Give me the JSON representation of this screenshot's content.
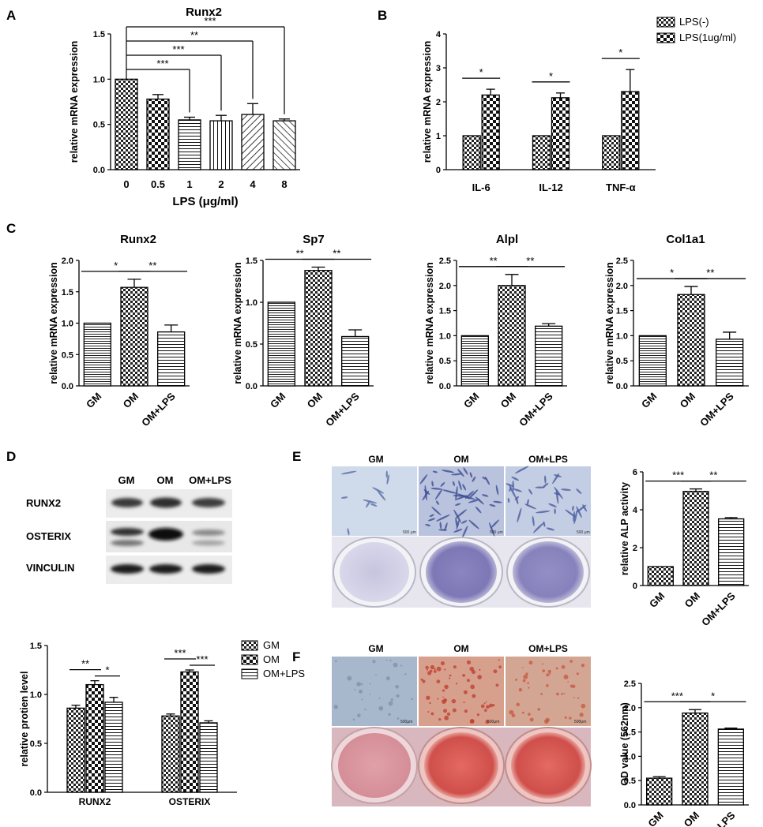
{
  "panel_letters": [
    "A",
    "B",
    "C",
    "D",
    "E",
    "F"
  ],
  "colors": {
    "ink": "#000000",
    "blot_bg": "#e6e6e6",
    "alp_well": "#9a97c8",
    "ars_well": "#d96060"
  },
  "chart_data": [
    {
      "id": "A",
      "type": "bar",
      "title": "Runx2",
      "xlabel": "LPS (μg/ml)",
      "ylabel": "relative mRNA expression",
      "categories": [
        "0",
        "0.5",
        "1",
        "2",
        "4",
        "8"
      ],
      "values": [
        1.0,
        0.78,
        0.55,
        0.54,
        0.61,
        0.54
      ],
      "errors": [
        0,
        0.05,
        0.03,
        0.06,
        0.12,
        0.02
      ],
      "patterns": [
        "checker",
        "checker-lg",
        "hlines",
        "vlines",
        "diag",
        "diag-rev"
      ],
      "ylim": [
        0,
        1.5
      ],
      "yticks": [
        "0.0",
        "0.5",
        "1.0",
        "1.5"
      ],
      "significance": [
        {
          "from": 0,
          "to": 2,
          "label": "***"
        },
        {
          "from": 0,
          "to": 3,
          "label": "***"
        },
        {
          "from": 0,
          "to": 4,
          "label": "**"
        },
        {
          "from": 0,
          "to": 5,
          "label": "***"
        }
      ]
    },
    {
      "id": "B",
      "type": "bar",
      "title": "",
      "xlabel": "",
      "ylabel": "relative mRNA expression",
      "categories": [
        "IL-6",
        "IL-12",
        "TNF-α"
      ],
      "series": [
        {
          "name": "LPS(-)",
          "values": [
            1.0,
            1.0,
            1.0
          ],
          "errors": [
            0,
            0,
            0
          ],
          "pattern": "checker"
        },
        {
          "name": "LPS(1ug/ml)",
          "values": [
            2.2,
            2.12,
            2.3
          ],
          "errors": [
            0.17,
            0.14,
            0.65
          ],
          "pattern": "checker-lg"
        }
      ],
      "ylim": [
        0,
        4
      ],
      "yticks": [
        "0",
        "1",
        "2",
        "3",
        "4"
      ],
      "significance": [
        {
          "category": 0,
          "label": "*"
        },
        {
          "category": 1,
          "label": "*"
        },
        {
          "category": 2,
          "label": "*"
        }
      ],
      "legend": "top-right"
    },
    {
      "id": "C1",
      "type": "bar",
      "title": "Runx2",
      "ylabel": "relative mRNA expression",
      "categories": [
        "GM",
        "OM",
        "OM+LPS"
      ],
      "values": [
        1.0,
        1.57,
        0.86
      ],
      "errors": [
        0,
        0.13,
        0.11
      ],
      "patterns": [
        "hlines-dense",
        "checker",
        "hlines"
      ],
      "ylim": [
        0,
        2.0
      ],
      "yticks": [
        "0.0",
        "0.5",
        "1.0",
        "1.5",
        "2.0"
      ],
      "significance": [
        {
          "from": 0,
          "to": 1,
          "label": "*"
        },
        {
          "from": 1,
          "to": 2,
          "label": "**"
        }
      ]
    },
    {
      "id": "C2",
      "type": "bar",
      "title": "Sp7",
      "ylabel": "relative mRNA expression",
      "categories": [
        "GM",
        "OM",
        "OM+LPS"
      ],
      "values": [
        1.0,
        1.38,
        0.59
      ],
      "errors": [
        0,
        0.04,
        0.08
      ],
      "patterns": [
        "hlines-dense",
        "checker",
        "hlines"
      ],
      "ylim": [
        0,
        1.5
      ],
      "yticks": [
        "0.0",
        "0.5",
        "1.0",
        "1.5"
      ],
      "significance": [
        {
          "from": 0,
          "to": 1,
          "label": "**"
        },
        {
          "from": 1,
          "to": 2,
          "label": "**"
        }
      ]
    },
    {
      "id": "C3",
      "type": "bar",
      "title": "Alpl",
      "ylabel": "relative mRNA expression",
      "categories": [
        "GM",
        "OM",
        "OM+LPS"
      ],
      "values": [
        1.0,
        2.0,
        1.19
      ],
      "errors": [
        0,
        0.22,
        0.05
      ],
      "patterns": [
        "hlines-dense",
        "checker",
        "hlines"
      ],
      "ylim": [
        0,
        2.5
      ],
      "yticks": [
        "0.0",
        "0.5",
        "1.0",
        "1.5",
        "2.0",
        "2.5"
      ],
      "significance": [
        {
          "from": 0,
          "to": 1,
          "label": "**"
        },
        {
          "from": 1,
          "to": 2,
          "label": "**"
        }
      ]
    },
    {
      "id": "C4",
      "type": "bar",
      "title": "Col1a1",
      "ylabel": "relative mRNA expression",
      "categories": [
        "GM",
        "OM",
        "OM+LPS"
      ],
      "values": [
        1.0,
        1.82,
        0.93
      ],
      "errors": [
        0,
        0.16,
        0.14
      ],
      "patterns": [
        "hlines-dense",
        "checker",
        "hlines"
      ],
      "ylim": [
        0,
        2.5
      ],
      "yticks": [
        "0.0",
        "0.5",
        "1.0",
        "1.5",
        "2.0",
        "2.5"
      ],
      "significance": [
        {
          "from": 0,
          "to": 1,
          "label": "*"
        },
        {
          "from": 1,
          "to": 2,
          "label": "**"
        }
      ]
    },
    {
      "id": "D",
      "type": "bar",
      "title": "",
      "ylabel": "relative protien level",
      "categories": [
        "RUNX2",
        "OSTERIX"
      ],
      "series": [
        {
          "name": "GM",
          "values": [
            0.86,
            0.78
          ],
          "errors": [
            0.03,
            0.02
          ],
          "pattern": "checker"
        },
        {
          "name": "OM",
          "values": [
            1.1,
            1.23
          ],
          "errors": [
            0.04,
            0.02
          ],
          "pattern": "checker-lg"
        },
        {
          "name": "OM+LPS",
          "values": [
            0.92,
            0.71
          ],
          "errors": [
            0.05,
            0.02
          ],
          "pattern": "hlines"
        }
      ],
      "ylim": [
        0,
        1.5
      ],
      "yticks": [
        "0.0",
        "0.5",
        "1.0",
        "1.5"
      ],
      "significance": [
        {
          "category": 0,
          "from": 0,
          "to": 1,
          "label": "**"
        },
        {
          "category": 0,
          "from": 1,
          "to": 2,
          "label": "*"
        },
        {
          "category": 1,
          "from": 0,
          "to": 1,
          "label": "***"
        },
        {
          "category": 1,
          "from": 1,
          "to": 2,
          "label": "***"
        }
      ],
      "legend": "top-right"
    },
    {
      "id": "E",
      "type": "bar",
      "title": "",
      "ylabel": "relative ALP activity",
      "categories": [
        "GM",
        "OM",
        "OM+LPS"
      ],
      "values": [
        1.0,
        4.97,
        3.52
      ],
      "errors": [
        0,
        0.13,
        0.07
      ],
      "patterns": [
        "checker",
        "checker",
        "hlines"
      ],
      "ylim": [
        0,
        6
      ],
      "yticks": [
        "0",
        "2",
        "4",
        "6"
      ],
      "significance": [
        {
          "from": 0,
          "to": 1,
          "label": "***"
        },
        {
          "from": 1,
          "to": 2,
          "label": "**"
        }
      ]
    },
    {
      "id": "F",
      "type": "bar",
      "title": "",
      "ylabel": "OD value (562nm)",
      "categories": [
        "GM",
        "OM",
        "OM+LPS"
      ],
      "values": [
        0.55,
        1.89,
        1.56
      ],
      "errors": [
        0.03,
        0.07,
        0.02
      ],
      "patterns": [
        "checker",
        "checker",
        "hlines"
      ],
      "ylim": [
        0,
        2.5
      ],
      "yticks": [
        "0.0",
        "0.5",
        "1.0",
        "1.5",
        "2.0",
        "2.5"
      ],
      "significance": [
        {
          "from": 0,
          "to": 1,
          "label": "***"
        },
        {
          "from": 1,
          "to": 2,
          "label": "*"
        }
      ]
    }
  ],
  "western_blot": {
    "columns": [
      "GM",
      "OM",
      "OM+LPS"
    ],
    "rows": [
      "RUNX2",
      "OSTERIX",
      "VINCULIN"
    ]
  },
  "images": {
    "E": {
      "columns": [
        "GM",
        "OM",
        "OM+LPS"
      ],
      "scale_bar": "500 μm"
    },
    "F": {
      "columns": [
        "GM",
        "OM",
        "OM+LPS"
      ],
      "scale_bar": "500μm"
    }
  }
}
